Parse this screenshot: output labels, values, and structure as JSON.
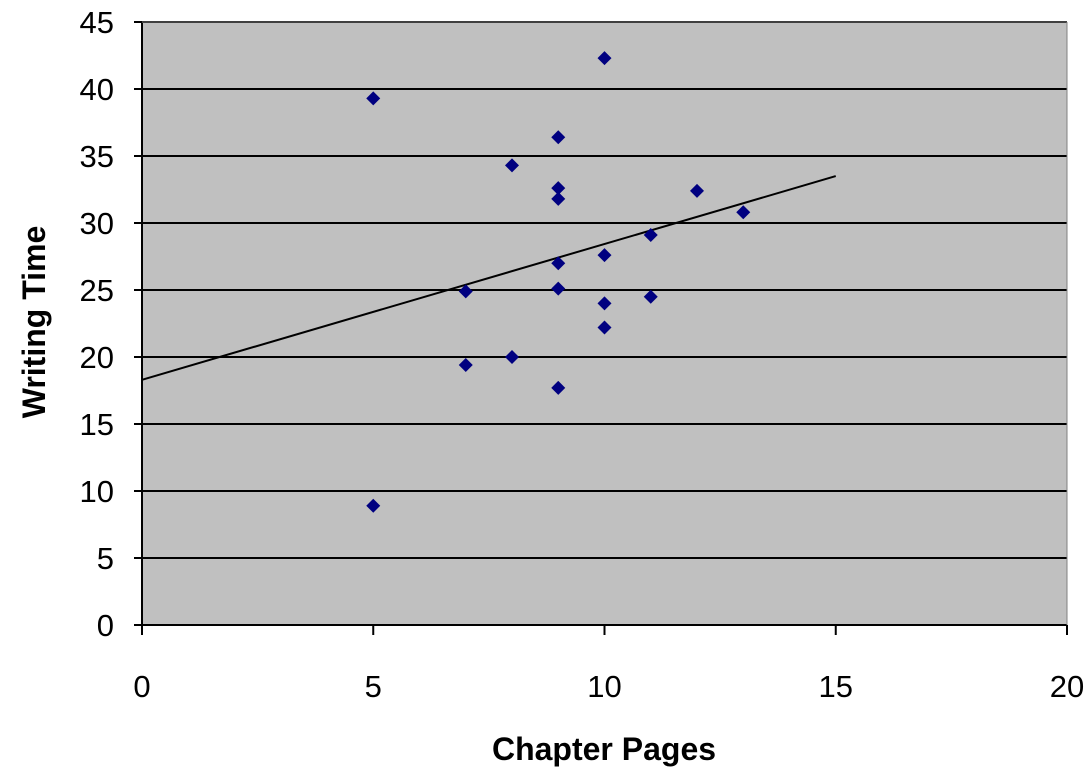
{
  "chart_data": {
    "type": "scatter",
    "xlabel": "Chapter Pages",
    "ylabel": "Writing Time",
    "xlim": [
      0,
      20
    ],
    "ylim": [
      0,
      45
    ],
    "xticks": [
      0,
      5,
      10,
      15,
      20
    ],
    "yticks": [
      0,
      5,
      10,
      15,
      20,
      25,
      30,
      35,
      40,
      45
    ],
    "grid": "horizontal",
    "plot_background": "#c0c0c0",
    "marker": "diamond",
    "marker_color": "#000080",
    "points": [
      {
        "x": 5,
        "y": 39.3
      },
      {
        "x": 5,
        "y": 8.9
      },
      {
        "x": 7,
        "y": 24.9
      },
      {
        "x": 7,
        "y": 19.4
      },
      {
        "x": 8,
        "y": 34.3
      },
      {
        "x": 8,
        "y": 20.0
      },
      {
        "x": 9,
        "y": 36.4
      },
      {
        "x": 9,
        "y": 32.6
      },
      {
        "x": 9,
        "y": 31.8
      },
      {
        "x": 9,
        "y": 27.0
      },
      {
        "x": 9,
        "y": 25.1
      },
      {
        "x": 9,
        "y": 17.7
      },
      {
        "x": 10,
        "y": 42.3
      },
      {
        "x": 10,
        "y": 27.6
      },
      {
        "x": 10,
        "y": 24.0
      },
      {
        "x": 10,
        "y": 22.2
      },
      {
        "x": 11,
        "y": 29.1
      },
      {
        "x": 11,
        "y": 24.5
      },
      {
        "x": 12,
        "y": 32.4
      },
      {
        "x": 13,
        "y": 30.8
      }
    ],
    "trendline": {
      "x": [
        0,
        15
      ],
      "y": [
        18.3,
        33.5
      ],
      "color": "#000000"
    }
  }
}
